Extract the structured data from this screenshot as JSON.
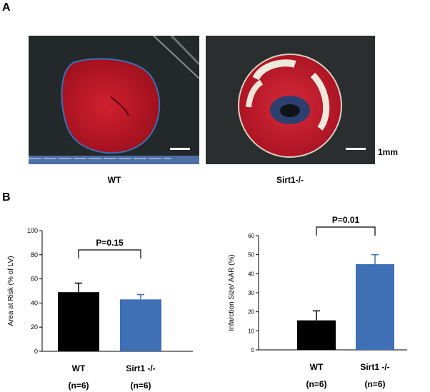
{
  "panel_a": {
    "label": "A",
    "images": [
      {
        "caption": "WT"
      },
      {
        "caption": "Sirt1-/-"
      }
    ],
    "scale_label": "1mm"
  },
  "panel_b": {
    "label": "B"
  },
  "chart_data": [
    {
      "type": "bar",
      "categories": [
        "WT",
        "Sirt1 -/-"
      ],
      "category_sublabels": [
        "(n=6)",
        "(n=6)"
      ],
      "values": [
        49,
        43
      ],
      "errors": [
        7.5,
        4
      ],
      "bar_colors": [
        "#000000",
        "#3f6fb5"
      ],
      "ylabel": "Area at Risk (% of LV)",
      "ylim": [
        0,
        100
      ],
      "yticks": [
        0,
        20,
        40,
        60,
        80,
        100
      ],
      "annotation": "P=0.15",
      "grid": false
    },
    {
      "type": "bar",
      "categories": [
        "WT",
        "Sirt1 -/-"
      ],
      "category_sublabels": [
        "(n=6)",
        "(n=6)"
      ],
      "values": [
        15.5,
        45
      ],
      "errors": [
        5,
        5
      ],
      "bar_colors": [
        "#000000",
        "#3f6fb5"
      ],
      "ylabel": "Infarction Size/ AAR (%)",
      "ylim": [
        0,
        60
      ],
      "yticks": [
        0,
        10,
        20,
        30,
        40,
        50,
        60
      ],
      "annotation": "P=0.01",
      "grid": false
    }
  ]
}
